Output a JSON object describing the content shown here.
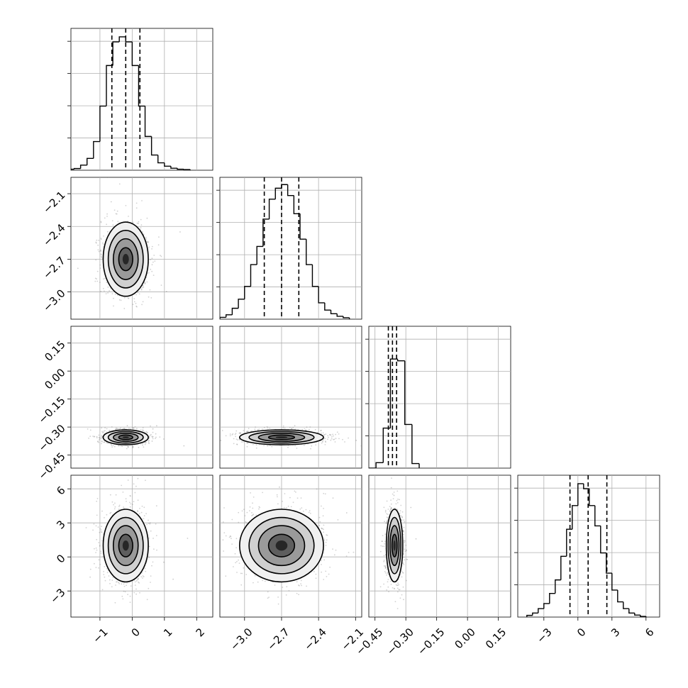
{
  "chart_data": [
    {
      "type": "bar",
      "panel": "hist-param-1",
      "bins": [
        [
          -2.0,
          -1.8
        ],
        [
          -1.8,
          -1.6
        ],
        [
          -1.6,
          -1.4
        ],
        [
          -1.4,
          -1.2
        ],
        [
          -1.2,
          -1.0
        ],
        [
          -1.0,
          -0.8
        ],
        [
          -0.8,
          -0.6
        ],
        [
          -0.6,
          -0.4
        ],
        [
          -0.4,
          -0.2
        ],
        [
          -0.2,
          0.0
        ],
        [
          0.0,
          0.2
        ],
        [
          0.2,
          0.4
        ],
        [
          0.4,
          0.6
        ],
        [
          0.6,
          0.8
        ],
        [
          0.8,
          1.0
        ],
        [
          1.0,
          1.2
        ],
        [
          1.2,
          1.4
        ],
        [
          1.4,
          1.6
        ],
        [
          1.6,
          1.8
        ]
      ],
      "values": [
        0.3,
        0.5,
        1.5,
        3.5,
        8.5,
        19,
        31,
        38,
        39.5,
        38,
        31,
        19,
        10,
        4.5,
        2.2,
        1.2,
        0.6,
        0.3,
        0.2
      ],
      "quantiles": [
        -0.63,
        -0.2,
        0.24
      ],
      "xlim": [
        -1.9,
        2.5
      ],
      "ylim": [
        0,
        42
      ],
      "grid": true
    },
    {
      "type": "bar",
      "panel": "hist-param-2",
      "bins": [
        [
          -3.2,
          -3.15
        ],
        [
          -3.15,
          -3.1
        ],
        [
          -3.1,
          -3.05
        ],
        [
          -3.05,
          -3.0
        ],
        [
          -3.0,
          -2.95
        ],
        [
          -2.95,
          -2.9
        ],
        [
          -2.9,
          -2.85
        ],
        [
          -2.85,
          -2.8
        ],
        [
          -2.8,
          -2.75
        ],
        [
          -2.75,
          -2.7
        ],
        [
          -2.7,
          -2.65
        ],
        [
          -2.65,
          -2.6
        ],
        [
          -2.6,
          -2.55
        ],
        [
          -2.55,
          -2.5
        ],
        [
          -2.5,
          -2.45
        ],
        [
          -2.45,
          -2.4
        ],
        [
          -2.4,
          -2.35
        ],
        [
          -2.35,
          -2.3
        ],
        [
          -2.3,
          -2.25
        ],
        [
          -2.25,
          -2.2
        ],
        [
          -2.2,
          -2.15
        ]
      ],
      "values": [
        0.5,
        1.2,
        3,
        5.5,
        9,
        15,
        20,
        27.5,
        33,
        36,
        37,
        34,
        29,
        22,
        15,
        9,
        4.5,
        2.5,
        1.5,
        0.8,
        0.4
      ],
      "quantiles": [
        -2.84,
        -2.7,
        -2.56
      ],
      "xlim": [
        -3.2,
        -2.05
      ],
      "ylim": [
        0,
        39
      ],
      "grid": true
    },
    {
      "type": "bar",
      "panel": "hist-param-3",
      "bins": [
        [
          -0.48,
          -0.445
        ],
        [
          -0.445,
          -0.41
        ],
        [
          -0.41,
          -0.375
        ],
        [
          -0.375,
          -0.34
        ],
        [
          -0.34,
          -0.305
        ],
        [
          -0.305,
          -0.27
        ],
        [
          -0.27,
          -0.235
        ]
      ],
      "values": [
        0,
        3,
        22,
        60,
        59,
        24,
        2.5
      ],
      "quantiles": [
        -0.385,
        -0.365,
        -0.345
      ],
      "xlim": [
        -0.48,
        0.21
      ],
      "ylim": [
        0,
        78
      ],
      "grid": true
    },
    {
      "type": "bar",
      "panel": "hist-param-4",
      "bins": [
        [
          -4.5,
          -4
        ],
        [
          -4,
          -3.5
        ],
        [
          -3.5,
          -3
        ],
        [
          -3,
          -2.5
        ],
        [
          -2.5,
          -2
        ],
        [
          -2,
          -1.5
        ],
        [
          -1.5,
          -1
        ],
        [
          -1,
          -0.5
        ],
        [
          -0.5,
          0
        ],
        [
          0,
          0.5
        ],
        [
          0.5,
          1
        ],
        [
          1,
          1.5
        ],
        [
          1.5,
          2
        ],
        [
          2,
          2.5
        ],
        [
          2.5,
          3
        ],
        [
          3,
          3.5
        ],
        [
          3.5,
          4
        ],
        [
          4,
          4.5
        ],
        [
          4.5,
          5
        ],
        [
          5,
          5.5
        ],
        [
          5.5,
          6
        ]
      ],
      "values": [
        0.5,
        1.2,
        2.5,
        4,
        7,
        11,
        18,
        26,
        33,
        39.5,
        38,
        33,
        27,
        19,
        13,
        8,
        4.5,
        2.5,
        1.2,
        0.6,
        0.2
      ],
      "quantiles": [
        -0.7,
        0.9,
        2.55
      ],
      "xlim": [
        -5.3,
        7.2
      ],
      "ylim": [
        0,
        42
      ],
      "grid": true
    },
    {
      "type": "scatter",
      "panel": "2d-p1-p2",
      "mean": [
        -0.2,
        -2.7
      ],
      "std": [
        0.35,
        0.17
      ],
      "xlim": [
        -1.9,
        2.5
      ],
      "ylim": [
        -3.25,
        -1.95
      ]
    },
    {
      "type": "scatter",
      "panel": "2d-p1-p3",
      "mean": [
        -0.2,
        -0.355
      ],
      "std": [
        0.35,
        0.02
      ],
      "xlim": [
        -1.9,
        2.5
      ],
      "ylim": [
        -0.52,
        0.24
      ]
    },
    {
      "type": "scatter",
      "panel": "2d-p2-p3",
      "mean": [
        -2.7,
        -0.355
      ],
      "std": [
        0.17,
        0.02
      ],
      "xlim": [
        -3.2,
        -2.05
      ],
      "ylim": [
        -0.52,
        0.24
      ]
    },
    {
      "type": "scatter",
      "panel": "2d-p1-p4",
      "mean": [
        -0.2,
        1.0
      ],
      "std": [
        0.35,
        1.6
      ],
      "xlim": [
        -1.9,
        2.5
      ],
      "ylim": [
        -5.3,
        7.2
      ]
    },
    {
      "type": "scatter",
      "panel": "2d-p2-p4",
      "mean": [
        -2.7,
        1.0
      ],
      "std": [
        0.17,
        1.6
      ],
      "xlim": [
        -3.2,
        -2.05
      ],
      "ylim": [
        -5.3,
        7.2
      ]
    },
    {
      "type": "scatter",
      "panel": "2d-p3-p4",
      "mean": [
        -0.355,
        1.0
      ],
      "std": [
        0.02,
        1.6
      ],
      "xlim": [
        -0.48,
        0.21
      ],
      "ylim": [
        -5.3,
        7.2
      ]
    }
  ],
  "axes": {
    "p1": {
      "ticks": [
        -1,
        0,
        1,
        2
      ],
      "labels": [
        "−1",
        "0",
        "1",
        "2"
      ]
    },
    "p2": {
      "ticks": [
        -3.0,
        -2.7,
        -2.4,
        -2.1
      ],
      "labels": [
        "−3.0",
        "−2.7",
        "−2.4",
        "−2.1"
      ]
    },
    "p3": {
      "ticks": [
        -0.45,
        -0.3,
        -0.15,
        0.0,
        0.15
      ],
      "labels": [
        "−0.45",
        "−0.30",
        "−0.15",
        "0.00",
        "0.15"
      ]
    },
    "p4": {
      "ticks": [
        -3,
        0,
        3,
        6
      ],
      "labels": [
        "−3",
        "0",
        "3",
        "6"
      ]
    }
  },
  "colors": {
    "scatter": "#7f7f7f",
    "density": "#000000",
    "lines": "#000000"
  }
}
